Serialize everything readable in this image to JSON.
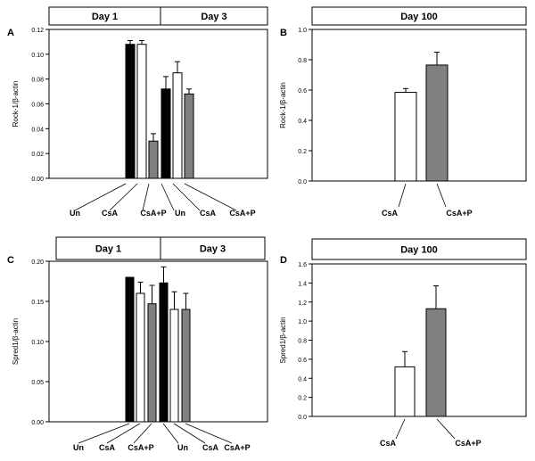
{
  "chart_data": [
    {
      "panel": "A",
      "type": "bar",
      "ylabel": "Rock-1/β-actin",
      "ylim": [
        0,
        0.12
      ],
      "yticks": [
        "0.00",
        "0.02",
        "0.04",
        "0.06",
        "0.08",
        "0.10",
        "0.12"
      ],
      "groups": [
        {
          "label": "Day 1",
          "categories": [
            "Un",
            "CsA",
            "CsA+P"
          ]
        },
        {
          "label": "Day 3",
          "categories": [
            "Un",
            "CsA",
            "CsA+P"
          ]
        }
      ],
      "bars": [
        {
          "group": "Day 1",
          "category": "Un",
          "value": 0.108,
          "error": 0.003
        },
        {
          "group": "Day 1",
          "category": "CsA",
          "value": 0.108,
          "error": 0.003
        },
        {
          "group": "Day 1",
          "category": "CsA+P",
          "value": 0.03,
          "error": 0.006
        },
        {
          "group": "Day 3",
          "category": "Un",
          "value": 0.072,
          "error": 0.01
        },
        {
          "group": "Day 3",
          "category": "CsA",
          "value": 0.085,
          "error": 0.009
        },
        {
          "group": "Day 3",
          "category": "CsA+P",
          "value": 0.068,
          "error": 0.004
        }
      ]
    },
    {
      "panel": "B",
      "type": "bar",
      "ylabel": "Rock-1/β-actin",
      "ylim": [
        0,
        1.0
      ],
      "yticks": [
        "0.0",
        "0.2",
        "0.4",
        "0.6",
        "0.8",
        "1.0"
      ],
      "groups": [
        {
          "label": "Day 100",
          "categories": [
            "CsA",
            "CsA+P"
          ]
        }
      ],
      "bars": [
        {
          "group": "Day 100",
          "category": "CsA",
          "value": 0.585,
          "error": 0.025
        },
        {
          "group": "Day 100",
          "category": "CsA+P",
          "value": 0.765,
          "error": 0.085
        }
      ]
    },
    {
      "panel": "C",
      "type": "bar",
      "ylabel": "Spred1/β-actin",
      "ylim": [
        0,
        0.2
      ],
      "yticks": [
        "0.00",
        "0.05",
        "0.10",
        "0.15",
        "0.20"
      ],
      "groups": [
        {
          "label": "Day 1",
          "categories": [
            "Un",
            "CsA",
            "CsA+P"
          ]
        },
        {
          "label": "Day 3",
          "categories": [
            "Un",
            "CsA",
            "CsA+P"
          ]
        }
      ],
      "bars": [
        {
          "group": "Day 1",
          "category": "Un",
          "value": 0.18,
          "error": 0.0
        },
        {
          "group": "Day 1",
          "category": "CsA",
          "value": 0.16,
          "error": 0.014
        },
        {
          "group": "Day 1",
          "category": "CsA+P",
          "value": 0.147,
          "error": 0.023
        },
        {
          "group": "Day 3",
          "category": "Un",
          "value": 0.173,
          "error": 0.02
        },
        {
          "group": "Day 3",
          "category": "CsA",
          "value": 0.14,
          "error": 0.022
        },
        {
          "group": "Day 3",
          "category": "CsA+P",
          "value": 0.14,
          "error": 0.02
        }
      ]
    },
    {
      "panel": "D",
      "type": "bar",
      "ylabel": "Spred1/β-actin",
      "ylim": [
        0,
        1.6
      ],
      "yticks": [
        "0.0",
        "0.2",
        "0.4",
        "0.6",
        "0.8",
        "1.0",
        "1.2",
        "1.4",
        "1.6"
      ],
      "groups": [
        {
          "label": "Day 100",
          "categories": [
            "CsA",
            "CsA+P"
          ]
        }
      ],
      "bars": [
        {
          "group": "Day 100",
          "category": "CsA",
          "value": 0.52,
          "error": 0.16
        },
        {
          "group": "Day 100",
          "category": "CsA+P",
          "value": 1.13,
          "error": 0.24
        }
      ]
    }
  ],
  "colors": {
    "Un": "#000000",
    "CsA": "#ffffff",
    "CsA+P": "#808080",
    "axis": "#000000"
  }
}
